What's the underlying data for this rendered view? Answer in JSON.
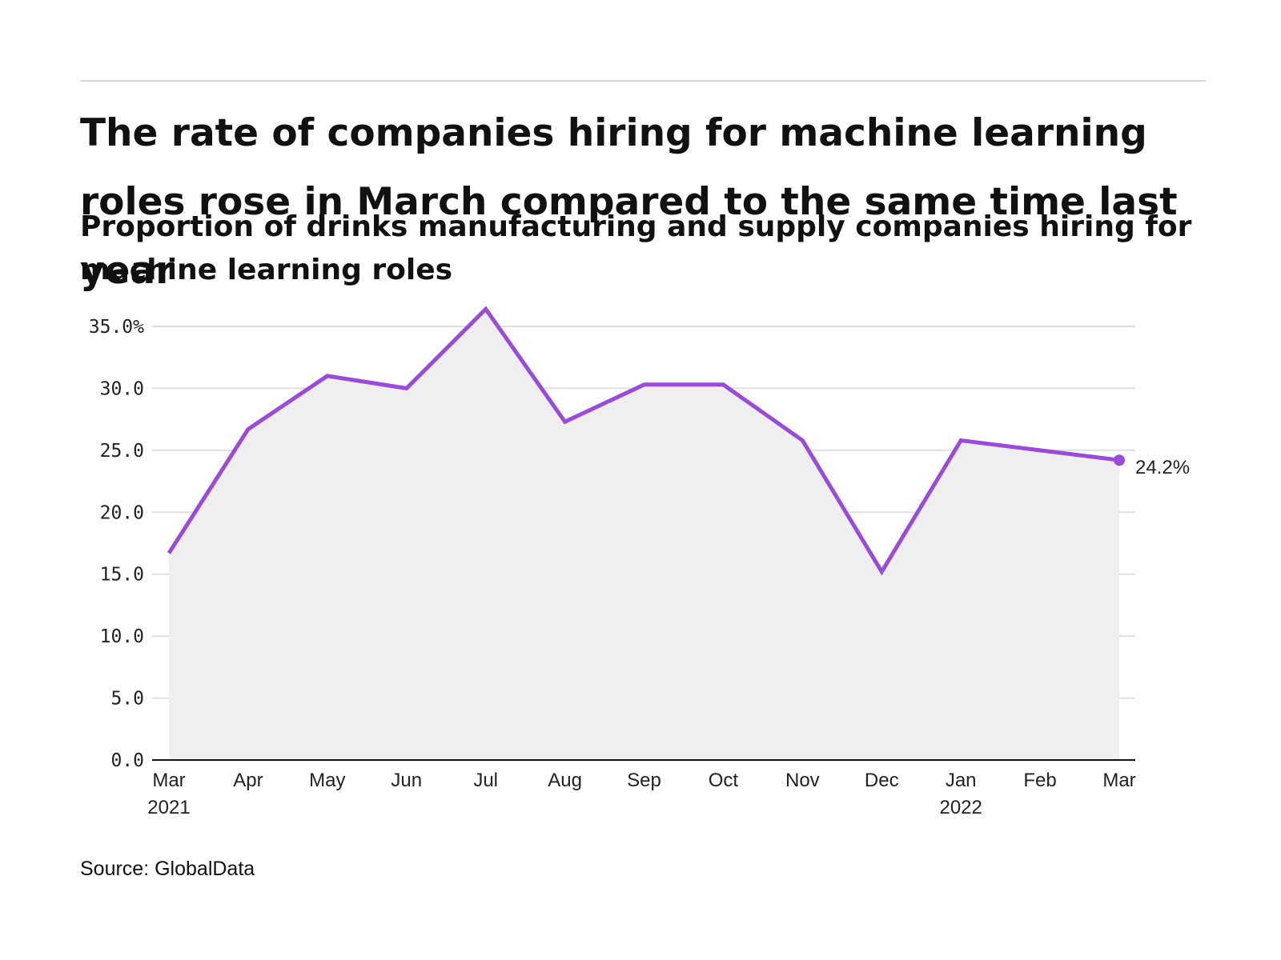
{
  "header": {
    "title": "The rate of companies hiring for machine learning roles rose in March compared to the same time last year",
    "subtitle": "Proportion of drinks manufacturing and supply companies hiring for machine learning roles"
  },
  "footer": {
    "source": "Source: GlobalData"
  },
  "colors": {
    "line": "#9b4bdb",
    "area": "#efefef",
    "grid": "#e0e0e0",
    "axis": "#111111"
  },
  "chart_data": {
    "type": "line",
    "title": "The rate of companies hiring for machine learning roles rose in March compared to the same time last year",
    "subtitle": "Proportion of drinks manufacturing and supply companies hiring for machine learning roles",
    "xlabel": "",
    "ylabel": "",
    "categories": [
      "Mar 2021",
      "Apr",
      "May",
      "Jun",
      "Jul",
      "Aug",
      "Sep",
      "Oct",
      "Nov",
      "Dec",
      "Jan 2022",
      "Feb",
      "Mar"
    ],
    "x_tick_labels": [
      {
        "month": "Mar",
        "year": "2021"
      },
      {
        "month": "Apr",
        "year": ""
      },
      {
        "month": "May",
        "year": ""
      },
      {
        "month": "Jun",
        "year": ""
      },
      {
        "month": "Jul",
        "year": ""
      },
      {
        "month": "Aug",
        "year": ""
      },
      {
        "month": "Sep",
        "year": ""
      },
      {
        "month": "Oct",
        "year": ""
      },
      {
        "month": "Nov",
        "year": ""
      },
      {
        "month": "Dec",
        "year": ""
      },
      {
        "month": "Jan",
        "year": "2022"
      },
      {
        "month": "Feb",
        "year": ""
      },
      {
        "month": "Mar",
        "year": ""
      }
    ],
    "values": [
      16.7,
      26.7,
      31.0,
      30.0,
      36.4,
      27.3,
      30.3,
      30.3,
      25.8,
      15.2,
      25.8,
      25.0,
      24.2
    ],
    "ylim": [
      0,
      35
    ],
    "yticks": [
      0,
      5,
      10,
      15,
      20,
      25,
      30,
      35
    ],
    "ytick_labels": [
      "0.0",
      "5.0",
      "10.0",
      "15.0",
      "20.0",
      "25.0",
      "30.0",
      "35.0%"
    ],
    "end_label": "24.2%",
    "grid": true,
    "legend": "none",
    "area_fill": true
  }
}
